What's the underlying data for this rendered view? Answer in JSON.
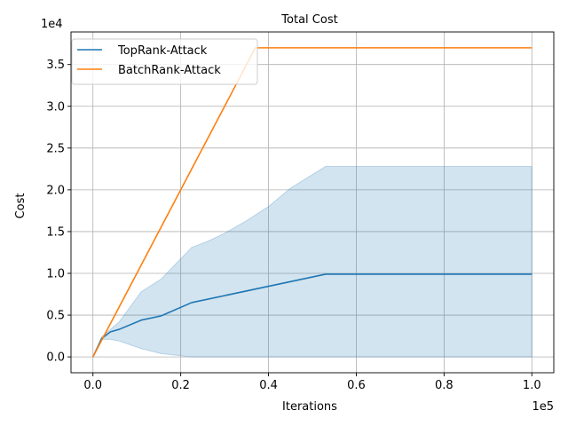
{
  "chart_data": {
    "type": "line",
    "title": "Total Cost",
    "xlabel": "Iterations",
    "ylabel": "Cost",
    "x_offset_text": "1e5",
    "y_offset_text": "1e4",
    "xlim": [
      -5000,
      105000
    ],
    "ylim": [
      -1900,
      38900
    ],
    "x_ticks": [
      0,
      20000,
      40000,
      60000,
      80000,
      100000
    ],
    "x_tick_labels": [
      "0.0",
      "0.2",
      "0.4",
      "0.6",
      "0.8",
      "1.0"
    ],
    "y_ticks": [
      0,
      5000,
      10000,
      15000,
      20000,
      25000,
      30000,
      35000
    ],
    "y_tick_labels": [
      "0.0",
      "0.5",
      "1.0",
      "1.5",
      "2.0",
      "2.5",
      "3.0",
      "3.5"
    ],
    "grid": true,
    "legend_position": "top-left",
    "series": [
      {
        "name": "TopRank-Attack",
        "color": "#1f77b4",
        "x": [
          0,
          2000,
          4000,
          6000,
          11000,
          15500,
          22500,
          53000,
          100000
        ],
        "y": [
          0,
          2200,
          3000,
          3300,
          4400,
          4900,
          6500,
          9900,
          9900
        ]
      },
      {
        "name": "BatchRank-Attack",
        "color": "#ff7f0e",
        "x": [
          0,
          37000,
          100000
        ],
        "y": [
          0,
          37000,
          37000
        ]
      }
    ],
    "band": {
      "series": "TopRank-Attack",
      "color": "#1f77b4",
      "opacity": 0.2,
      "x": [
        0,
        2000,
        4000,
        6000,
        11000,
        15500,
        22500,
        26000,
        30000,
        35000,
        40000,
        45000,
        53000,
        100000
      ],
      "upper": [
        0,
        2400,
        3300,
        4200,
        7800,
        9300,
        13100,
        13800,
        14800,
        16300,
        18000,
        20200,
        22800,
        22800
      ],
      "lower": [
        0,
        2100,
        2100,
        1900,
        1000,
        400,
        0,
        0,
        0,
        0,
        0,
        0,
        0,
        0
      ]
    }
  }
}
